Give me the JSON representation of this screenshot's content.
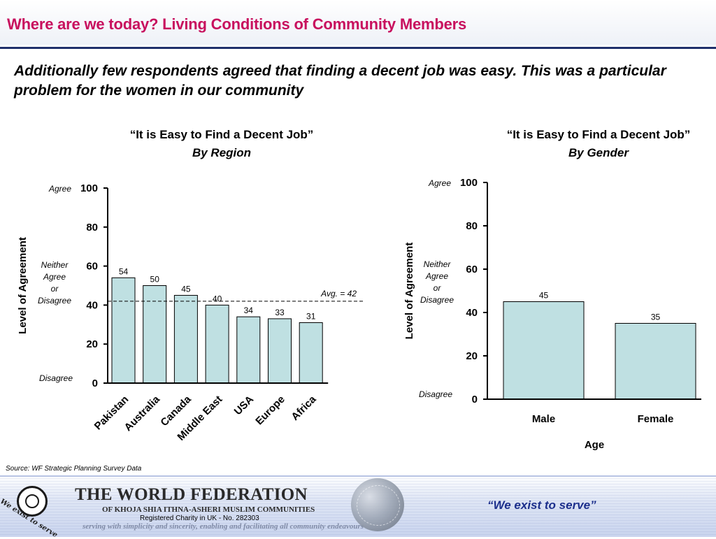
{
  "header": {
    "title": "Where are we today? Living Conditions of Community Members",
    "subtitle": "Additionally few respondents agreed that finding a decent job was easy.  This was a particular problem for the women in our community"
  },
  "chart_data": [
    {
      "type": "bar",
      "title": "“It is Easy to Find a Decent Job”",
      "subtitle": "By Region",
      "categories": [
        "Pakistan",
        "Australia",
        "Canada",
        "Middle East",
        "USA",
        "Europe",
        "Africa"
      ],
      "values": [
        54,
        50,
        45,
        40,
        34,
        33,
        31
      ],
      "ylabel": "Level of Agreement",
      "xlabel": "",
      "ylim": [
        0,
        100
      ],
      "yticks": [
        0,
        20,
        40,
        60,
        80,
        100
      ],
      "scale_notes": {
        "top": "Agree",
        "middle": "Neither Agree or Disagree",
        "bottom": "Disagree"
      },
      "reference_line": {
        "value": 42,
        "label": "Avg. = 42",
        "style": "dashed"
      },
      "bar_color": "#bfe0e2"
    },
    {
      "type": "bar",
      "title": "“It is Easy to Find a Decent Job”",
      "subtitle": "By Gender",
      "categories": [
        "Male",
        "Female"
      ],
      "values": [
        45,
        35
      ],
      "ylabel": "Level of Agreement",
      "xlabel": "Age",
      "ylim": [
        0,
        100
      ],
      "yticks": [
        0,
        20,
        40,
        60,
        80,
        100
      ],
      "scale_notes": {
        "top": "Agree",
        "middle": "Neither Agree or Disagree",
        "bottom": "Disagree"
      },
      "bar_color": "#bfe0e2"
    }
  ],
  "source": "Source: WF Strategic Planning Survey Data",
  "footer": {
    "org_name": "THE WORLD FEDERATION",
    "org_subtitle": "OF KHOJA SHIA ITHNA-ASHERI MUSLIM COMMUNITIES",
    "charity": "Registered Charity in UK - No. 282303",
    "tagline": "serving with simplicity and sincerity, enabling and facilitating all community endeavours",
    "motto": "We exist to serve",
    "quote": "“We exist to serve”"
  },
  "colors": {
    "title": "#c8105e",
    "rule": "#1f2f6b",
    "bar": "#bfe0e2",
    "footer_quote": "#1c2f8c"
  }
}
